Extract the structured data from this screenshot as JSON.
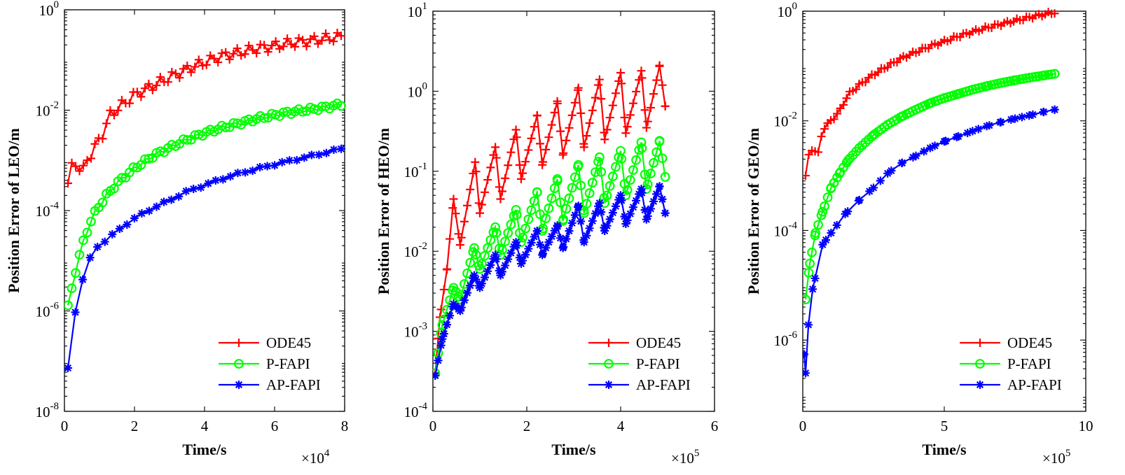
{
  "chart_data": [
    {
      "type": "line",
      "ylabel": "Position Error of LEO/m",
      "xlabel": "Time/s",
      "x_multiplier": "×10",
      "x_multiplier_exp": "4",
      "xlim": [
        0,
        80000
      ],
      "xscale": 10000,
      "ylim_log": [
        -8,
        0
      ],
      "xticks": [
        0,
        20000,
        40000,
        60000,
        80000
      ],
      "xtick_labels": [
        "0",
        "2",
        "4",
        "6",
        "8"
      ],
      "yticks_exp": [
        "-8",
        "-6",
        "-4",
        "-2",
        "0"
      ],
      "legend": {
        "position": "bottom-right"
      },
      "series": [
        {
          "name": "ODE45",
          "color": "#ff0000",
          "marker": "plus",
          "n": 72,
          "x_start": 1000,
          "x_end": 79000,
          "anchors": [
            [
              1000,
              0.00035
            ],
            [
              2000,
              0.0007
            ],
            [
              3000,
              0.0009
            ],
            [
              4000,
              0.0008
            ],
            [
              5000,
              0.0005
            ],
            [
              6000,
              0.0009
            ],
            [
              8000,
              0.0015
            ],
            [
              11000,
              0.0035
            ],
            [
              13000,
              0.008
            ],
            [
              16000,
              0.012
            ],
            [
              20000,
              0.02
            ],
            [
              25000,
              0.03
            ],
            [
              30000,
              0.045
            ],
            [
              35000,
              0.065
            ],
            [
              40000,
              0.09
            ],
            [
              45000,
              0.12
            ],
            [
              50000,
              0.14
            ],
            [
              55000,
              0.17
            ],
            [
              60000,
              0.19
            ],
            [
              65000,
              0.22
            ],
            [
              70000,
              0.24
            ],
            [
              75000,
              0.27
            ],
            [
              79000,
              0.29
            ]
          ],
          "wobble": 0.1
        },
        {
          "name": "P-FAPI",
          "color": "#00ff00",
          "marker": "circle",
          "n": 72,
          "x_start": 1000,
          "x_end": 79000,
          "anchors": [
            [
              1000,
              1.2e-06
            ],
            [
              3000,
              5.5e-06
            ],
            [
              5000,
              2e-05
            ],
            [
              7000,
              5e-05
            ],
            [
              9000,
              0.0001
            ],
            [
              12000,
              0.0002
            ],
            [
              15000,
              0.00035
            ],
            [
              20000,
              0.0007
            ],
            [
              25000,
              0.0012
            ],
            [
              30000,
              0.0018
            ],
            [
              35000,
              0.0026
            ],
            [
              40000,
              0.0035
            ],
            [
              45000,
              0.0045
            ],
            [
              50000,
              0.0055
            ],
            [
              55000,
              0.0068
            ],
            [
              60000,
              0.008
            ],
            [
              65000,
              0.0092
            ],
            [
              70000,
              0.0103
            ],
            [
              75000,
              0.0115
            ],
            [
              79000,
              0.013
            ]
          ],
          "wobble": 0.04
        },
        {
          "name": "AP-FAPI",
          "color": "#0000ff",
          "marker": "asterisk",
          "n": 38,
          "x_start": 1000,
          "x_end": 79000,
          "anchors": [
            [
              1000,
              7e-08
            ],
            [
              3000,
              9e-07
            ],
            [
              6000,
              7.5e-06
            ],
            [
              9000,
              1.8e-05
            ],
            [
              13000,
              3e-05
            ],
            [
              17000,
              5e-05
            ],
            [
              20000,
              7e-05
            ],
            [
              25000,
              0.00011
            ],
            [
              30000,
              0.00016
            ],
            [
              35000,
              0.00024
            ],
            [
              40000,
              0.00032
            ],
            [
              45000,
              0.00043
            ],
            [
              50000,
              0.00055
            ],
            [
              55000,
              0.00068
            ],
            [
              60000,
              0.00083
            ],
            [
              65000,
              0.001
            ],
            [
              70000,
              0.0012
            ],
            [
              75000,
              0.00145
            ],
            [
              79000,
              0.0017
            ]
          ],
          "wobble": 0.02
        }
      ]
    },
    {
      "type": "line",
      "ylabel": "Position Error of HEO/m",
      "xlabel": "Time/s",
      "x_multiplier": "×10",
      "x_multiplier_exp": "5",
      "xlim": [
        0,
        600000
      ],
      "xscale": 100000,
      "ylim_log": [
        -4,
        1
      ],
      "xticks": [
        0,
        200000,
        400000,
        600000
      ],
      "xtick_labels": [
        "0",
        "2",
        "4",
        "6"
      ],
      "yticks_exp": [
        "-4",
        "-3",
        "-2",
        "-1",
        "0",
        "1"
      ],
      "legend": {
        "position": "bottom-right"
      },
      "series": [
        {
          "name": "ODE45",
          "color": "#ff0000",
          "marker": "plus",
          "n": 80,
          "x_start": 5000,
          "x_end": 495000,
          "anchors": [
            [
              5000,
              0.0003
            ],
            [
              15000,
              0.0015
            ],
            [
              30000,
              0.006
            ],
            [
              44000,
              0.045
            ],
            [
              58000,
              0.012
            ],
            [
              90000,
              0.13
            ],
            [
              100000,
              0.03
            ],
            [
              133000,
              0.2
            ],
            [
              144000,
              0.045
            ],
            [
              177000,
              0.33
            ],
            [
              188000,
              0.08
            ],
            [
              222000,
              0.5
            ],
            [
              233000,
              0.12
            ],
            [
              265000,
              0.75
            ],
            [
              277000,
              0.16
            ],
            [
              310000,
              1.1
            ],
            [
              322000,
              0.2
            ],
            [
              355000,
              1.4
            ],
            [
              366000,
              0.25
            ],
            [
              400000,
              1.7
            ],
            [
              411000,
              0.3
            ],
            [
              444000,
              1.8
            ],
            [
              455000,
              0.35
            ],
            [
              483000,
              2.1
            ],
            [
              495000,
              0.65
            ]
          ],
          "wobble": 0.0
        },
        {
          "name": "P-FAPI",
          "color": "#00ff00",
          "marker": "circle",
          "n": 80,
          "x_start": 5000,
          "x_end": 495000,
          "anchors": [
            [
              5000,
              0.0003
            ],
            [
              20000,
              0.0012
            ],
            [
              44000,
              0.0035
            ],
            [
              58000,
              0.0025
            ],
            [
              88000,
              0.011
            ],
            [
              100000,
              0.006
            ],
            [
              133000,
              0.02
            ],
            [
              144000,
              0.009
            ],
            [
              177000,
              0.033
            ],
            [
              188000,
              0.013
            ],
            [
              222000,
              0.055
            ],
            [
              233000,
              0.018
            ],
            [
              265000,
              0.08
            ],
            [
              277000,
              0.024
            ],
            [
              310000,
              0.12
            ],
            [
              322000,
              0.03
            ],
            [
              355000,
              0.15
            ],
            [
              366000,
              0.04
            ],
            [
              400000,
              0.18
            ],
            [
              411000,
              0.05
            ],
            [
              444000,
              0.23
            ],
            [
              455000,
              0.06
            ],
            [
              483000,
              0.24
            ],
            [
              495000,
              0.085
            ]
          ],
          "wobble": 0.0
        },
        {
          "name": "AP-FAPI",
          "color": "#0000ff",
          "marker": "asterisk",
          "n": 80,
          "x_start": 5000,
          "x_end": 495000,
          "anchors": [
            [
              5000,
              0.00028
            ],
            [
              20000,
              0.0008
            ],
            [
              44000,
              0.0022
            ],
            [
              58000,
              0.0018
            ],
            [
              88000,
              0.005
            ],
            [
              100000,
              0.0035
            ],
            [
              133000,
              0.009
            ],
            [
              144000,
              0.005
            ],
            [
              177000,
              0.013
            ],
            [
              188000,
              0.007
            ],
            [
              222000,
              0.018
            ],
            [
              233000,
              0.009
            ],
            [
              265000,
              0.021
            ],
            [
              277000,
              0.011
            ],
            [
              310000,
              0.037
            ],
            [
              322000,
              0.013
            ],
            [
              355000,
              0.04
            ],
            [
              366000,
              0.018
            ],
            [
              400000,
              0.05
            ],
            [
              411000,
              0.022
            ],
            [
              444000,
              0.06
            ],
            [
              455000,
              0.025
            ],
            [
              483000,
              0.065
            ],
            [
              495000,
              0.03
            ]
          ],
          "wobble": 0.0
        }
      ]
    },
    {
      "type": "line",
      "ylabel": "Position Error of GEO/m",
      "xlabel": "Time/s",
      "x_multiplier": "×10",
      "x_multiplier_exp": "5",
      "xlim": [
        0,
        1000000
      ],
      "xscale": 100000,
      "ylim_log": [
        -7.3,
        0
      ],
      "xticks": [
        0,
        500000,
        1000000
      ],
      "xtick_labels": [
        "0",
        "5",
        "10"
      ],
      "yticks_exp": [
        "-6",
        "-4",
        "-2",
        "0"
      ],
      "legend": {
        "position": "bottom-right"
      },
      "series": [
        {
          "name": "ODE45",
          "color": "#ff0000",
          "marker": "plus",
          "n": 80,
          "x_start": 10000,
          "x_end": 890000,
          "anchors": [
            [
              10000,
              0.001
            ],
            [
              25000,
              0.003
            ],
            [
              40000,
              0.003
            ],
            [
              55000,
              0.0025
            ],
            [
              70000,
              0.007
            ],
            [
              100000,
              0.01
            ],
            [
              130000,
              0.015
            ],
            [
              160000,
              0.03
            ],
            [
              200000,
              0.045
            ],
            [
              250000,
              0.07
            ],
            [
              300000,
              0.1
            ],
            [
              350000,
              0.14
            ],
            [
              400000,
              0.18
            ],
            [
              450000,
              0.23
            ],
            [
              500000,
              0.28
            ],
            [
              550000,
              0.35
            ],
            [
              600000,
              0.42
            ],
            [
              650000,
              0.5
            ],
            [
              700000,
              0.58
            ],
            [
              750000,
              0.67
            ],
            [
              800000,
              0.77
            ],
            [
              850000,
              0.87
            ],
            [
              890000,
              0.95
            ]
          ],
          "wobble": 0.03
        },
        {
          "name": "P-FAPI",
          "color": "#00ff00",
          "marker": "circle",
          "n": 80,
          "x_start": 10000,
          "x_end": 890000,
          "anchors": [
            [
              10000,
              5.5e-06
            ],
            [
              25000,
              2.5e-05
            ],
            [
              45000,
              9e-05
            ],
            [
              70000,
              0.00022
            ],
            [
              100000,
              0.0006
            ],
            [
              130000,
              0.0011
            ],
            [
              160000,
              0.0019
            ],
            [
              200000,
              0.0032
            ],
            [
              250000,
              0.0055
            ],
            [
              300000,
              0.0085
            ],
            [
              350000,
              0.012
            ],
            [
              400000,
              0.016
            ],
            [
              450000,
              0.021
            ],
            [
              500000,
              0.026
            ],
            [
              550000,
              0.031
            ],
            [
              600000,
              0.037
            ],
            [
              650000,
              0.043
            ],
            [
              700000,
              0.049
            ],
            [
              750000,
              0.055
            ],
            [
              800000,
              0.061
            ],
            [
              850000,
              0.067
            ],
            [
              890000,
              0.072
            ]
          ],
          "wobble": 0.0
        },
        {
          "name": "AP-FAPI",
          "color": "#0000ff",
          "marker": "asterisk",
          "n": 24,
          "x_start": 5000,
          "x_end": 890000,
          "anchors": [
            [
              5000,
              5.5e-07
            ],
            [
              10000,
              2.5e-07
            ],
            [
              20000,
              1.9e-06
            ],
            [
              35000,
              8.5e-06
            ],
            [
              70000,
              5.5e-05
            ],
            [
              100000,
              9e-05
            ],
            [
              150000,
              0.0002
            ],
            [
              200000,
              0.00036
            ],
            [
              250000,
              0.0006
            ],
            [
              300000,
              0.0011
            ],
            [
              350000,
              0.0017
            ],
            [
              400000,
              0.0023
            ],
            [
              450000,
              0.0032
            ],
            [
              500000,
              0.0042
            ],
            [
              550000,
              0.0052
            ],
            [
              600000,
              0.0065
            ],
            [
              650000,
              0.008
            ],
            [
              700000,
              0.0095
            ],
            [
              750000,
              0.011
            ],
            [
              800000,
              0.0125
            ],
            [
              850000,
              0.0145
            ],
            [
              890000,
              0.016
            ]
          ],
          "wobble": 0.0
        }
      ]
    }
  ]
}
